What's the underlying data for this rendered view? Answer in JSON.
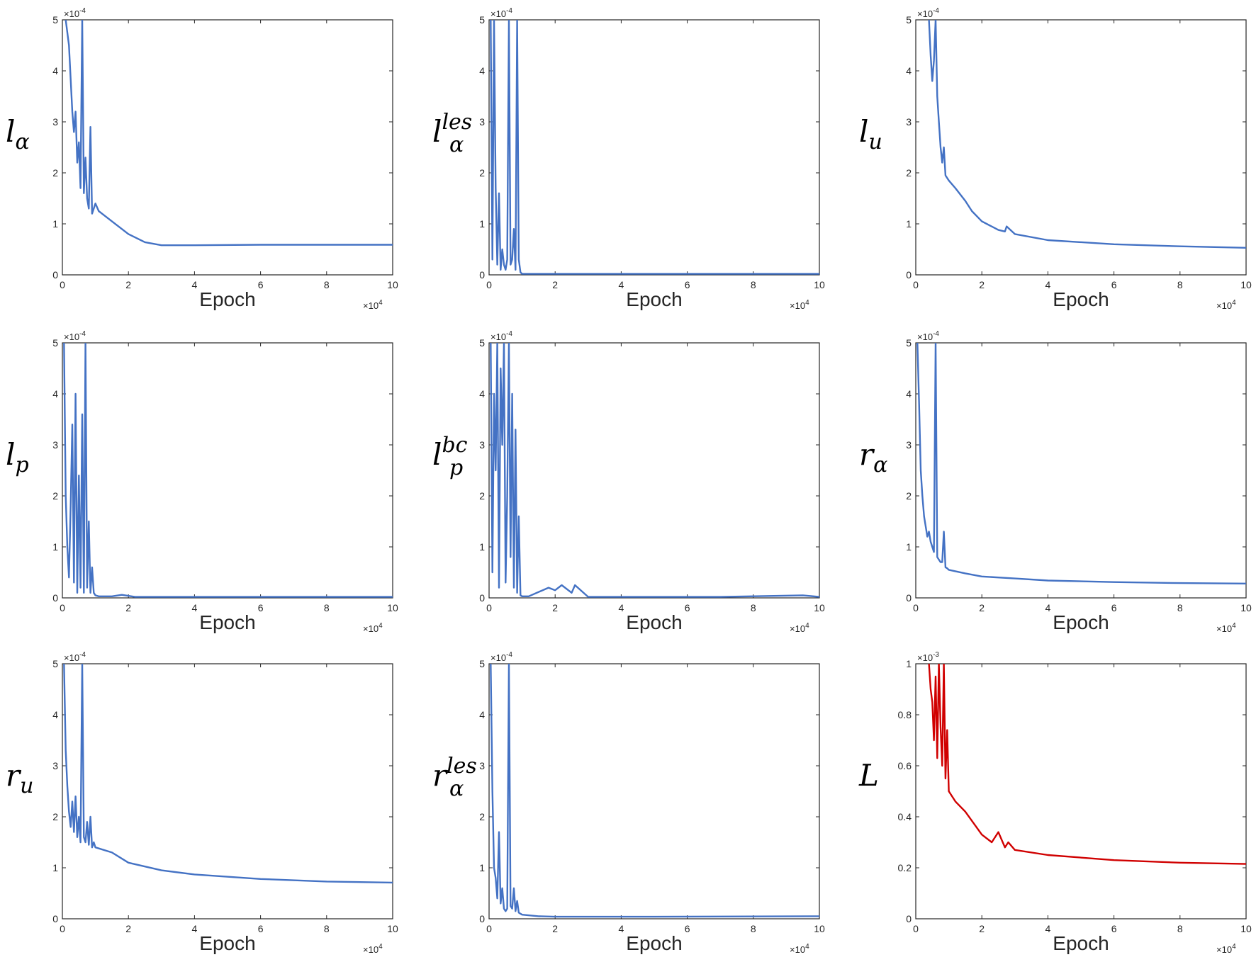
{
  "chart_data": [
    {
      "type": "line",
      "ylabel": "l_α",
      "ylabel_base": "l",
      "ylabel_sub": "α",
      "ylabel_sup": "",
      "xlabel": "Epoch",
      "ylim": [
        0,
        5
      ],
      "xlim": [
        0,
        10
      ],
      "yticks": [
        "0",
        "1",
        "2",
        "3",
        "4",
        "5"
      ],
      "xticks": [
        "0",
        "2",
        "4",
        "6",
        "8",
        "10"
      ],
      "y_exponent": "-4",
      "x_exponent": "4",
      "color": "#4472C4",
      "series": [
        {
          "x": [
            0.1,
            0.2,
            0.3,
            0.35,
            0.4,
            0.45,
            0.5,
            0.55,
            0.6,
            0.65,
            0.7,
            0.75,
            0.8,
            0.85,
            0.9,
            0.95,
            1.0,
            1.1,
            1.2,
            1.5,
            2.0,
            2.5,
            3.0,
            4.0,
            6.0,
            8.0,
            10.0
          ],
          "values": [
            5.0,
            4.5,
            3.2,
            2.8,
            3.2,
            2.2,
            2.6,
            1.7,
            5.0,
            1.6,
            2.3,
            1.5,
            1.3,
            2.9,
            1.2,
            1.3,
            1.4,
            1.25,
            1.2,
            1.05,
            0.8,
            0.64,
            0.58,
            0.58,
            0.59,
            0.59,
            0.59
          ]
        }
      ]
    },
    {
      "type": "line",
      "ylabel": "l_α^les",
      "ylabel_base": "l",
      "ylabel_sub": "α",
      "ylabel_sup": "les",
      "xlabel": "Epoch",
      "ylim": [
        0,
        5
      ],
      "xlim": [
        0,
        10
      ],
      "yticks": [
        "0",
        "1",
        "2",
        "3",
        "4",
        "5"
      ],
      "xticks": [
        "0",
        "2",
        "4",
        "6",
        "8",
        "10"
      ],
      "y_exponent": "-4",
      "x_exponent": "4",
      "color": "#4472C4",
      "series": [
        {
          "x": [
            0.05,
            0.1,
            0.15,
            0.2,
            0.25,
            0.3,
            0.35,
            0.4,
            0.45,
            0.5,
            0.55,
            0.6,
            0.65,
            0.7,
            0.75,
            0.8,
            0.85,
            0.9,
            0.95,
            1.0,
            1.2,
            2.0,
            3.0,
            4.0,
            6.0,
            8.0,
            10.0
          ],
          "values": [
            5.0,
            0.3,
            5.0,
            1.7,
            0.2,
            1.6,
            0.1,
            0.5,
            0.2,
            0.1,
            0.3,
            5.0,
            0.2,
            0.3,
            0.9,
            0.1,
            5.0,
            0.3,
            0.05,
            0.02,
            0.02,
            0.02,
            0.02,
            0.02,
            0.02,
            0.02,
            0.02
          ]
        }
      ]
    },
    {
      "type": "line",
      "ylabel": "l_u",
      "ylabel_base": "l",
      "ylabel_sub": "u",
      "ylabel_sup": "",
      "xlabel": "Epoch",
      "ylim": [
        0,
        5
      ],
      "xlim": [
        0,
        10
      ],
      "yticks": [
        "0",
        "1",
        "2",
        "3",
        "4",
        "5"
      ],
      "xticks": [
        "0",
        "2",
        "4",
        "6",
        "8",
        "10"
      ],
      "y_exponent": "-4",
      "x_exponent": "4",
      "color": "#4472C4",
      "series": [
        {
          "x": [
            0.4,
            0.45,
            0.5,
            0.55,
            0.6,
            0.65,
            0.7,
            0.75,
            0.8,
            0.85,
            0.9,
            1.0,
            1.2,
            1.5,
            1.7,
            2.0,
            2.5,
            2.7,
            2.75,
            3.0,
            4.0,
            6.0,
            8.0,
            10.0
          ],
          "values": [
            5.0,
            4.3,
            3.8,
            4.2,
            5.0,
            3.5,
            3.0,
            2.5,
            2.2,
            2.5,
            1.95,
            1.85,
            1.7,
            1.45,
            1.25,
            1.05,
            0.88,
            0.85,
            0.95,
            0.8,
            0.68,
            0.6,
            0.56,
            0.53
          ]
        }
      ]
    },
    {
      "type": "line",
      "ylabel": "l_p",
      "ylabel_base": "l",
      "ylabel_sub": "p",
      "ylabel_sup": "",
      "xlabel": "Epoch",
      "ylim": [
        0,
        5
      ],
      "xlim": [
        0,
        10
      ],
      "yticks": [
        "0",
        "1",
        "2",
        "3",
        "4",
        "5"
      ],
      "xticks": [
        "0",
        "2",
        "4",
        "6",
        "8",
        "10"
      ],
      "y_exponent": "-4",
      "x_exponent": "4",
      "color": "#4472C4",
      "series": [
        {
          "x": [
            0.05,
            0.1,
            0.15,
            0.2,
            0.25,
            0.3,
            0.35,
            0.4,
            0.45,
            0.5,
            0.55,
            0.6,
            0.65,
            0.7,
            0.75,
            0.8,
            0.85,
            0.9,
            0.95,
            1.0,
            1.1,
            1.5,
            1.8,
            2.2,
            3.0,
            5.0,
            10.0
          ],
          "values": [
            5.0,
            2.0,
            1.0,
            0.4,
            1.8,
            3.4,
            0.3,
            4.0,
            0.1,
            2.4,
            0.2,
            3.6,
            0.1,
            5.0,
            0.2,
            1.5,
            0.1,
            0.6,
            0.1,
            0.05,
            0.03,
            0.03,
            0.06,
            0.02,
            0.02,
            0.02,
            0.02
          ]
        }
      ]
    },
    {
      "type": "line",
      "ylabel": "l_p^bc",
      "ylabel_base": "l",
      "ylabel_sub": "p",
      "ylabel_sup": "bc",
      "xlabel": "Epoch",
      "ylim": [
        0,
        5
      ],
      "xlim": [
        0,
        10
      ],
      "yticks": [
        "0",
        "1",
        "2",
        "3",
        "4",
        "5"
      ],
      "xticks": [
        "0",
        "2",
        "4",
        "6",
        "8",
        "10"
      ],
      "y_exponent": "-4",
      "x_exponent": "4",
      "color": "#4472C4",
      "series": [
        {
          "x": [
            0.05,
            0.1,
            0.15,
            0.2,
            0.25,
            0.3,
            0.35,
            0.4,
            0.45,
            0.5,
            0.55,
            0.6,
            0.65,
            0.7,
            0.75,
            0.8,
            0.85,
            0.9,
            0.95,
            1.0,
            1.2,
            1.8,
            2.0,
            2.2,
            2.5,
            2.6,
            3.0,
            5.0,
            7.0,
            9.5,
            10.0
          ],
          "values": [
            5.0,
            0.5,
            4.0,
            2.5,
            5.0,
            0.2,
            4.5,
            3.0,
            5.0,
            0.3,
            2.0,
            5.0,
            0.8,
            4.0,
            0.2,
            3.3,
            0.1,
            1.6,
            0.05,
            0.03,
            0.03,
            0.2,
            0.15,
            0.25,
            0.1,
            0.25,
            0.02,
            0.02,
            0.02,
            0.05,
            0.02
          ]
        }
      ]
    },
    {
      "type": "line",
      "ylabel": "r_α",
      "ylabel_base": "r",
      "ylabel_sub": "α",
      "ylabel_sup": "",
      "xlabel": "Epoch",
      "ylim": [
        0,
        5
      ],
      "xlim": [
        0,
        10
      ],
      "yticks": [
        "0",
        "1",
        "2",
        "3",
        "4",
        "5"
      ],
      "xticks": [
        "0",
        "2",
        "4",
        "6",
        "8",
        "10"
      ],
      "y_exponent": "-4",
      "x_exponent": "4",
      "color": "#4472C4",
      "series": [
        {
          "x": [
            0.05,
            0.1,
            0.15,
            0.2,
            0.25,
            0.3,
            0.35,
            0.4,
            0.45,
            0.5,
            0.55,
            0.6,
            0.65,
            0.7,
            0.75,
            0.8,
            0.85,
            0.9,
            0.95,
            1.0,
            1.5,
            2.0,
            3.0,
            4.0,
            6.0,
            8.0,
            10.0
          ],
          "values": [
            5.0,
            3.8,
            2.5,
            2.0,
            1.6,
            1.4,
            1.2,
            1.3,
            1.1,
            1.0,
            0.9,
            5.0,
            0.8,
            0.75,
            0.7,
            0.7,
            1.3,
            0.6,
            0.58,
            0.55,
            0.48,
            0.42,
            0.38,
            0.34,
            0.31,
            0.29,
            0.28
          ]
        }
      ]
    },
    {
      "type": "line",
      "ylabel": "r_u",
      "ylabel_base": "r",
      "ylabel_sub": "u",
      "ylabel_sup": "",
      "xlabel": "Epoch",
      "ylim": [
        0,
        5
      ],
      "xlim": [
        0,
        10
      ],
      "yticks": [
        "0",
        "1",
        "2",
        "3",
        "4",
        "5"
      ],
      "xticks": [
        "0",
        "2",
        "4",
        "6",
        "8",
        "10"
      ],
      "y_exponent": "-4",
      "x_exponent": "4",
      "color": "#4472C4",
      "series": [
        {
          "x": [
            0.05,
            0.1,
            0.15,
            0.2,
            0.25,
            0.3,
            0.35,
            0.4,
            0.45,
            0.5,
            0.55,
            0.6,
            0.65,
            0.7,
            0.75,
            0.8,
            0.85,
            0.9,
            0.95,
            1.0,
            1.5,
            2.0,
            3.0,
            4.0,
            6.0,
            8.0,
            10.0
          ],
          "values": [
            5.0,
            3.3,
            2.6,
            2.1,
            1.8,
            2.3,
            1.7,
            2.4,
            1.6,
            2.0,
            1.5,
            5.0,
            1.6,
            1.5,
            1.9,
            1.45,
            2.0,
            1.4,
            1.5,
            1.4,
            1.3,
            1.1,
            0.95,
            0.87,
            0.78,
            0.73,
            0.71
          ]
        }
      ]
    },
    {
      "type": "line",
      "ylabel": "r_α^les",
      "ylabel_base": "r",
      "ylabel_sub": "α",
      "ylabel_sup": "les",
      "xlabel": "Epoch",
      "ylim": [
        0,
        5
      ],
      "xlim": [
        0,
        10
      ],
      "yticks": [
        "0",
        "1",
        "2",
        "3",
        "4",
        "5"
      ],
      "xticks": [
        "0",
        "2",
        "4",
        "6",
        "8",
        "10"
      ],
      "y_exponent": "-4",
      "x_exponent": "4",
      "color": "#4472C4",
      "series": [
        {
          "x": [
            0.05,
            0.1,
            0.15,
            0.2,
            0.25,
            0.3,
            0.35,
            0.4,
            0.45,
            0.5,
            0.55,
            0.6,
            0.65,
            0.7,
            0.75,
            0.8,
            0.85,
            0.9,
            0.95,
            1.0,
            1.5,
            2.0,
            3.0,
            5.0,
            10.0
          ],
          "values": [
            5.0,
            2.5,
            1.0,
            0.8,
            0.4,
            1.7,
            0.3,
            0.6,
            0.2,
            0.15,
            0.2,
            5.0,
            0.25,
            0.2,
            0.6,
            0.15,
            0.35,
            0.12,
            0.1,
            0.08,
            0.05,
            0.04,
            0.04,
            0.04,
            0.05
          ]
        }
      ]
    },
    {
      "type": "line",
      "ylabel": "L",
      "ylabel_base": "L",
      "ylabel_sub": "",
      "ylabel_sup": "",
      "xlabel": "Epoch",
      "ylim": [
        0,
        1
      ],
      "xlim": [
        0,
        10
      ],
      "yticks": [
        "0",
        "0.2",
        "0.4",
        "0.6",
        "0.8",
        "1"
      ],
      "xticks": [
        "0",
        "2",
        "4",
        "6",
        "8",
        "10"
      ],
      "y_exponent": "-3",
      "x_exponent": "4",
      "color": "#D00000",
      "series": [
        {
          "x": [
            0.4,
            0.45,
            0.5,
            0.55,
            0.6,
            0.65,
            0.7,
            0.75,
            0.8,
            0.85,
            0.9,
            0.95,
            1.0,
            1.2,
            1.5,
            2.0,
            2.3,
            2.5,
            2.7,
            2.8,
            3.0,
            4.0,
            6.0,
            8.0,
            10.0
          ],
          "values": [
            1.0,
            0.9,
            0.85,
            0.7,
            0.95,
            0.63,
            1.0,
            0.75,
            0.6,
            1.0,
            0.55,
            0.74,
            0.5,
            0.46,
            0.42,
            0.33,
            0.3,
            0.34,
            0.28,
            0.3,
            0.27,
            0.25,
            0.23,
            0.22,
            0.215
          ]
        }
      ]
    }
  ]
}
